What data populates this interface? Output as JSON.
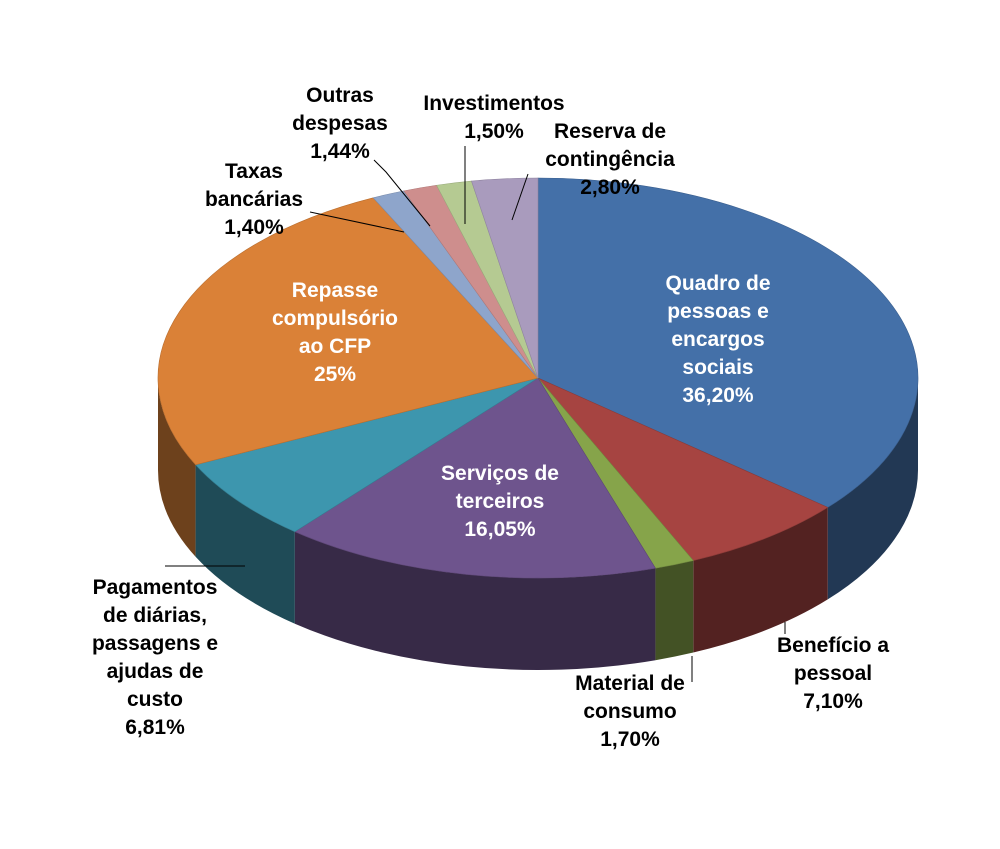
{
  "chart_data": {
    "type": "pie",
    "style": "3d",
    "slices": [
      {
        "label": [
          "Quadro de",
          "pessoas e",
          "encargos",
          "sociais"
        ],
        "value": 36.2,
        "value_label": "36,20%",
        "color": "#4470A8",
        "label_color": "#ffffff"
      },
      {
        "label": [
          "Benefício a",
          "pessoal"
        ],
        "value": 7.1,
        "value_label": "7,10%",
        "color": "#A64441",
        "label_color": "#000000"
      },
      {
        "label": [
          "Material de",
          "consumo"
        ],
        "value": 1.7,
        "value_label": "1,70%",
        "color": "#86A44A",
        "label_color": "#000000"
      },
      {
        "label": [
          "Serviços de",
          "terceiros"
        ],
        "value": 16.05,
        "value_label": "16,05%",
        "color": "#6E548D",
        "label_color": "#ffffff"
      },
      {
        "label": [
          "Pagamentos",
          "de diárias,",
          "passagens e",
          "ajudas de",
          "custo"
        ],
        "value": 6.81,
        "value_label": "6,81%",
        "color": "#3D96AE",
        "label_color": "#000000"
      },
      {
        "label": [
          "Repasse",
          "compulsório",
          "ao CFP"
        ],
        "value": 25,
        "value_label": "25%",
        "color": "#DA8137",
        "label_color": "#ffffff"
      },
      {
        "label": [
          "Taxas",
          "bancárias"
        ],
        "value": 1.4,
        "value_label": "1,40%",
        "color": "#8EA5CB",
        "label_color": "#000000"
      },
      {
        "label": [
          "Outras",
          "despesas"
        ],
        "value": 1.44,
        "value_label": "1,44%",
        "color": "#CE8E8D",
        "label_color": "#000000"
      },
      {
        "label": [
          "Investimentos"
        ],
        "value": 1.5,
        "value_label": "1,50%",
        "color": "#B5CA92",
        "label_color": "#000000"
      },
      {
        "label": [
          "Reserva de",
          "contingência"
        ],
        "value": 2.8,
        "value_label": "2,80%",
        "color": "#A99BBD",
        "label_color": "#000000"
      }
    ]
  }
}
